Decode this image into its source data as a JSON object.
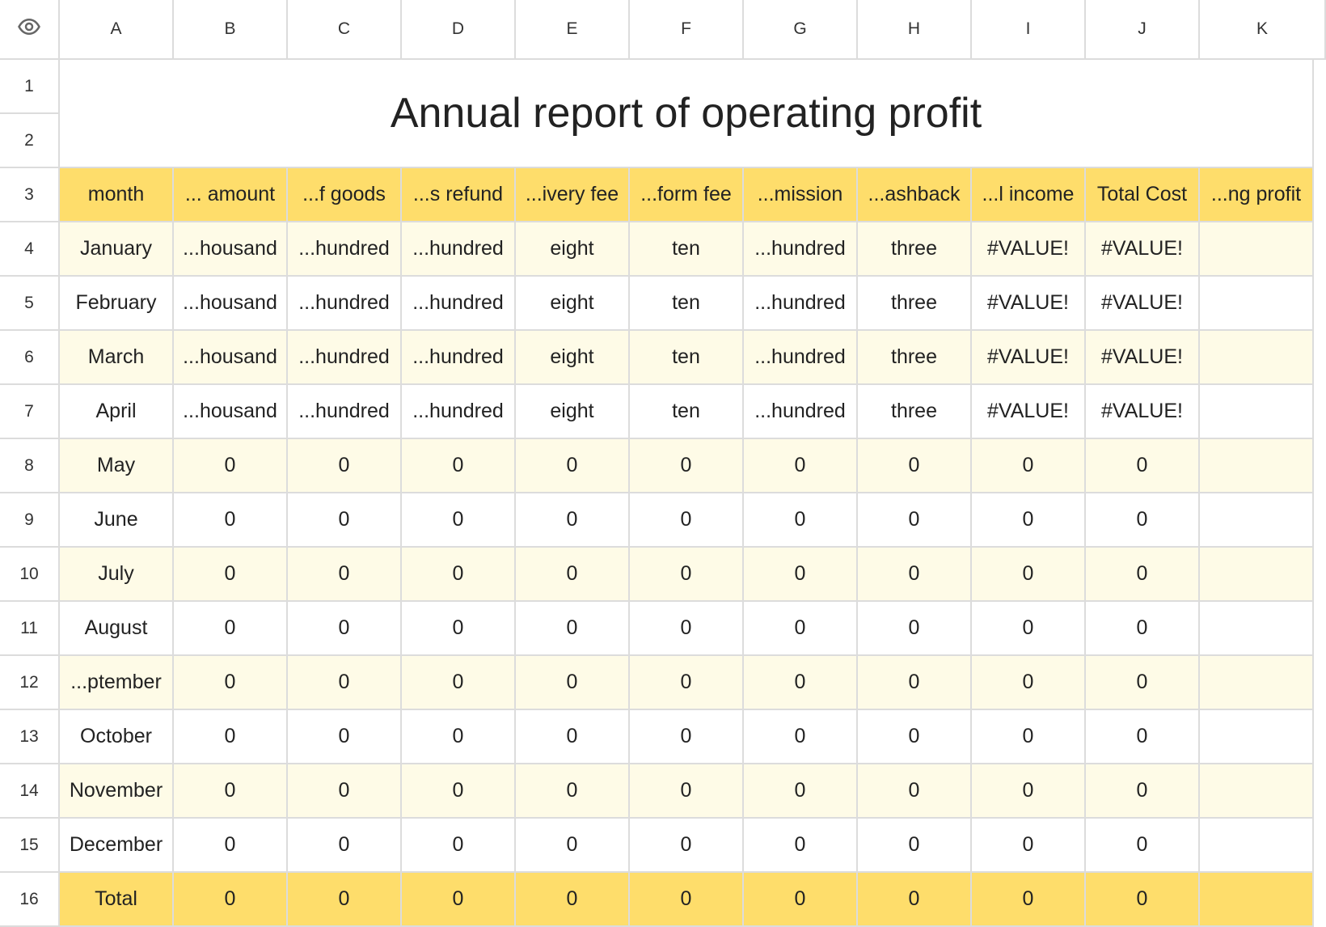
{
  "columns": [
    "A",
    "B",
    "C",
    "D",
    "E",
    "F",
    "G",
    "H",
    "I",
    "J",
    "K"
  ],
  "rows": [
    "1",
    "2",
    "3",
    "4",
    "5",
    "6",
    "7",
    "8",
    "9",
    "10",
    "11",
    "12",
    "13",
    "14",
    "15",
    "16"
  ],
  "title": "Annual report of operating profit",
  "headers": [
    "month",
    "... amount",
    "...f goods",
    "...s refund",
    "...ivery fee",
    "...form fee",
    "...mission",
    "...ashback",
    "...l income",
    "Total Cost",
    "...ng profit"
  ],
  "data": [
    [
      "January",
      "...housand",
      "...hundred",
      "...hundred",
      "eight",
      "ten",
      "...hundred",
      "three",
      "#VALUE!",
      "#VALUE!",
      ""
    ],
    [
      "February",
      "...housand",
      "...hundred",
      "...hundred",
      "eight",
      "ten",
      "...hundred",
      "three",
      "#VALUE!",
      "#VALUE!",
      ""
    ],
    [
      "March",
      "...housand",
      "...hundred",
      "...hundred",
      "eight",
      "ten",
      "...hundred",
      "three",
      "#VALUE!",
      "#VALUE!",
      ""
    ],
    [
      "April",
      "...housand",
      "...hundred",
      "...hundred",
      "eight",
      "ten",
      "...hundred",
      "three",
      "#VALUE!",
      "#VALUE!",
      ""
    ],
    [
      "May",
      "0",
      "0",
      "0",
      "0",
      "0",
      "0",
      "0",
      "0",
      "0",
      ""
    ],
    [
      "June",
      "0",
      "0",
      "0",
      "0",
      "0",
      "0",
      "0",
      "0",
      "0",
      ""
    ],
    [
      "July",
      "0",
      "0",
      "0",
      "0",
      "0",
      "0",
      "0",
      "0",
      "0",
      ""
    ],
    [
      "August",
      "0",
      "0",
      "0",
      "0",
      "0",
      "0",
      "0",
      "0",
      "0",
      ""
    ],
    [
      "...ptember",
      "0",
      "0",
      "0",
      "0",
      "0",
      "0",
      "0",
      "0",
      "0",
      ""
    ],
    [
      "October",
      "0",
      "0",
      "0",
      "0",
      "0",
      "0",
      "0",
      "0",
      "0",
      ""
    ],
    [
      "November",
      "0",
      "0",
      "0",
      "0",
      "0",
      "0",
      "0",
      "0",
      "0",
      ""
    ],
    [
      "December",
      "0",
      "0",
      "0",
      "0",
      "0",
      "0",
      "0",
      "0",
      "0",
      ""
    ]
  ],
  "total_row": [
    "Total",
    "0",
    "0",
    "0",
    "0",
    "0",
    "0",
    "0",
    "0",
    "0",
    ""
  ],
  "colors": {
    "header": "#fedd6b",
    "band": "#fefbe7",
    "grid": "#dcdcdc"
  },
  "icons": {
    "corner": "eye-icon"
  }
}
